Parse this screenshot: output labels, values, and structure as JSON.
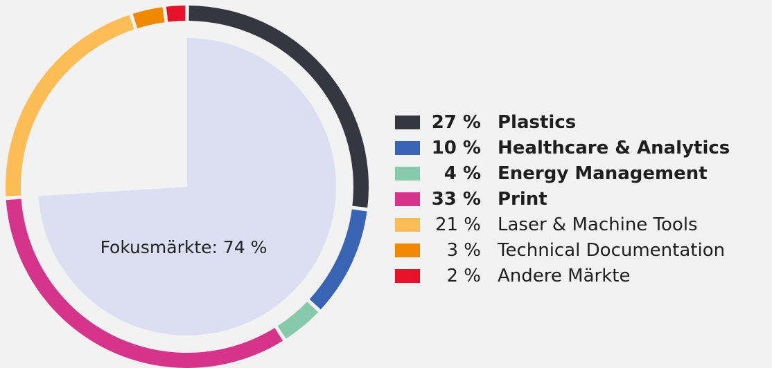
{
  "chart_data": {
    "type": "pie",
    "center_label": "Fokusmärkte: 74 %",
    "focus_total": 74,
    "series": [
      {
        "name": "Plastics",
        "value": 27,
        "label": "27 %",
        "color": "#363640",
        "focus": true
      },
      {
        "name": "Healthcare & Analytics",
        "value": 10,
        "label": "10 %",
        "color": "#3964b4",
        "focus": true
      },
      {
        "name": "Energy Management",
        "value": 4,
        "label": "4 %",
        "color": "#86c9ab",
        "focus": true
      },
      {
        "name": "Print",
        "value": 33,
        "label": "33 %",
        "color": "#d6338a",
        "focus": true
      },
      {
        "name": "Laser & Machine Tools",
        "value": 21,
        "label": "21 %",
        "color": "#fcbd56",
        "focus": false
      },
      {
        "name": "Technical Documentation",
        "value": 3,
        "label": "3 %",
        "color": "#f08800",
        "focus": false
      },
      {
        "name": "Andere Märkte",
        "value": 2,
        "label": "2 %",
        "color": "#e6122a",
        "focus": false
      }
    ],
    "focus_fill_color": "#dcdff2",
    "legend_position": "right"
  }
}
